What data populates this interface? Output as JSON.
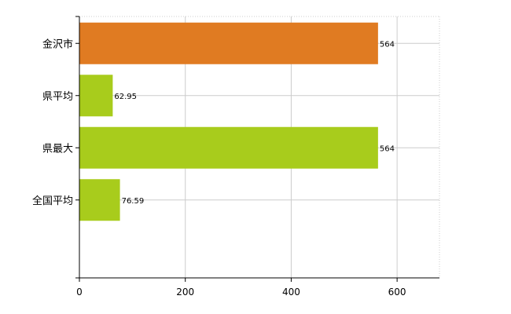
{
  "chart_data": {
    "type": "bar",
    "orientation": "horizontal",
    "categories": [
      "金沢市",
      "県平均",
      "県最大",
      "全国平均"
    ],
    "values": [
      564,
      62.95,
      564,
      76.59
    ],
    "value_labels": [
      "564",
      "62.95",
      "564",
      "76.59"
    ],
    "bar_colors": [
      "#e07b22",
      "#a8cc1c",
      "#a8cc1c",
      "#a8cc1c"
    ],
    "xlim": [
      0,
      680
    ],
    "xticks": [
      0,
      200,
      400,
      600
    ],
    "xtick_labels": [
      "0",
      "200",
      "400",
      "600"
    ],
    "grid": true,
    "gridline_color": "#cccccc",
    "title": "",
    "xlabel": "",
    "ylabel": ""
  }
}
